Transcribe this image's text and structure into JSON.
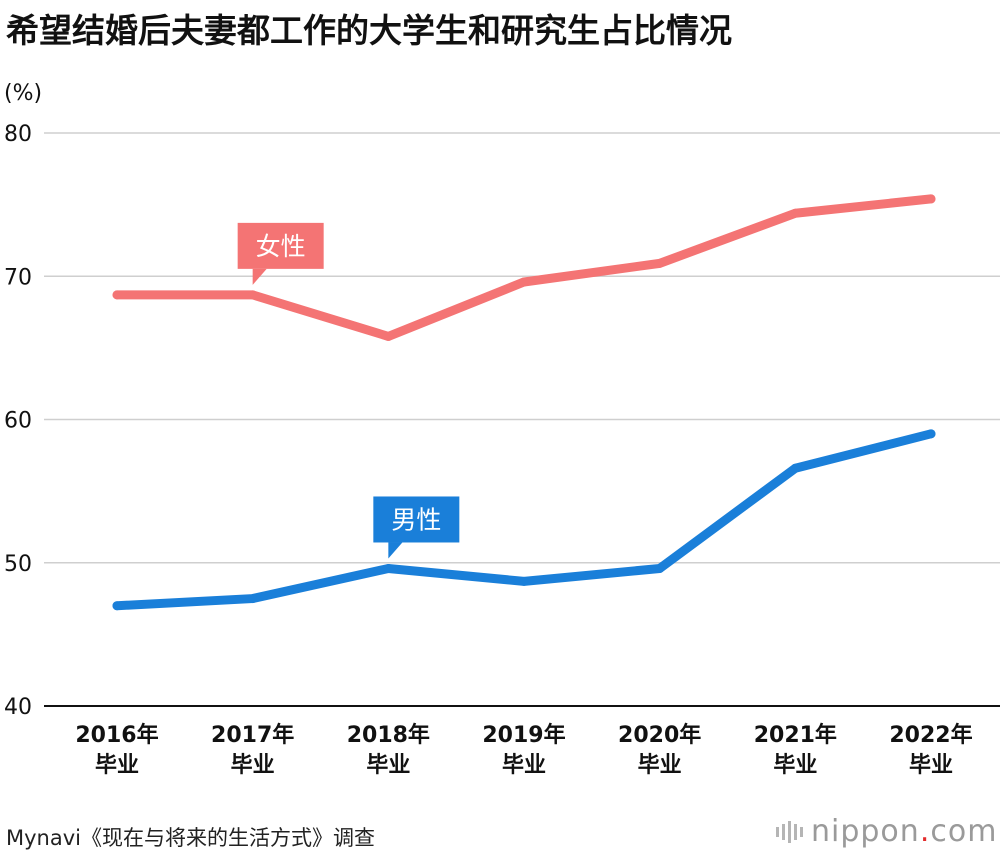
{
  "header": {
    "title": "希望结婚后夫妻都工作的大学生和研究生占比情况"
  },
  "footer": {
    "source": "Mynavi《现在与将来的生活方式》调查",
    "logo_text": "nippon",
    "logo_dot": ".",
    "logo_suffix": "com"
  },
  "chart_data": {
    "type": "line",
    "title": "希望结婚后夫妻都工作的大学生和研究生占比情况",
    "ylabel": "(%)",
    "xlabel": "",
    "ylim": [
      40,
      80
    ],
    "yticks": [
      40,
      50,
      60,
      70,
      80
    ],
    "grid": true,
    "categories": [
      [
        "2016年",
        "毕业"
      ],
      [
        "2017年",
        "毕业"
      ],
      [
        "2018年",
        "毕业"
      ],
      [
        "2019年",
        "毕业"
      ],
      [
        "2020年",
        "毕业"
      ],
      [
        "2021年",
        "毕业"
      ],
      [
        "2022年",
        "毕业"
      ]
    ],
    "series": [
      {
        "name": "女性",
        "color": "#f47474",
        "values": [
          68.7,
          68.7,
          65.8,
          69.6,
          70.9,
          74.4,
          75.4
        ],
        "label_index": 1
      },
      {
        "name": "男性",
        "color": "#1a7fd9",
        "values": [
          47.0,
          47.5,
          49.6,
          48.7,
          49.6,
          56.6,
          59.0
        ],
        "label_index": 2
      }
    ],
    "source": "Mynavi《现在与将来的生活方式》调查"
  }
}
